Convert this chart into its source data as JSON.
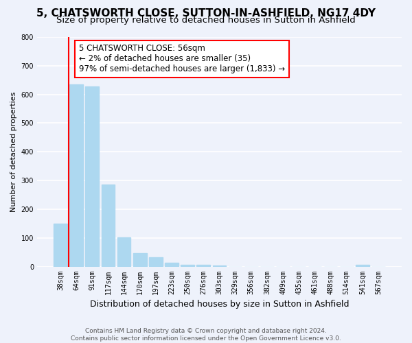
{
  "title": "5, CHATSWORTH CLOSE, SUTTON-IN-ASHFIELD, NG17 4DY",
  "subtitle": "Size of property relative to detached houses in Sutton in Ashfield",
  "xlabel": "Distribution of detached houses by size in Sutton in Ashfield",
  "ylabel": "Number of detached properties",
  "categories": [
    "38sqm",
    "64sqm",
    "91sqm",
    "117sqm",
    "144sqm",
    "170sqm",
    "197sqm",
    "223sqm",
    "250sqm",
    "276sqm",
    "303sqm",
    "329sqm",
    "356sqm",
    "382sqm",
    "409sqm",
    "435sqm",
    "461sqm",
    "488sqm",
    "514sqm",
    "541sqm",
    "567sqm"
  ],
  "values": [
    150,
    635,
    628,
    287,
    101,
    46,
    33,
    14,
    5,
    5,
    4,
    0,
    0,
    0,
    0,
    0,
    0,
    0,
    0,
    7,
    0
  ],
  "bar_color": "#add8f0",
  "vline_color": "red",
  "vline_x_index": 1,
  "annotation_box_text": "5 CHATSWORTH CLOSE: 56sqm\n← 2% of detached houses are smaller (35)\n97% of semi-detached houses are larger (1,833) →",
  "ylim": [
    0,
    800
  ],
  "yticks": [
    0,
    100,
    200,
    300,
    400,
    500,
    600,
    700,
    800
  ],
  "footnote": "Contains HM Land Registry data © Crown copyright and database right 2024.\nContains public sector information licensed under the Open Government Licence v3.0.",
  "bg_color": "#eef2fb",
  "plot_bg_color": "#eef2fb",
  "grid_color": "white",
  "title_fontsize": 11,
  "subtitle_fontsize": 9.5,
  "xlabel_fontsize": 9,
  "ylabel_fontsize": 8,
  "tick_fontsize": 7,
  "annotation_fontsize": 8.5,
  "footnote_fontsize": 6.5
}
